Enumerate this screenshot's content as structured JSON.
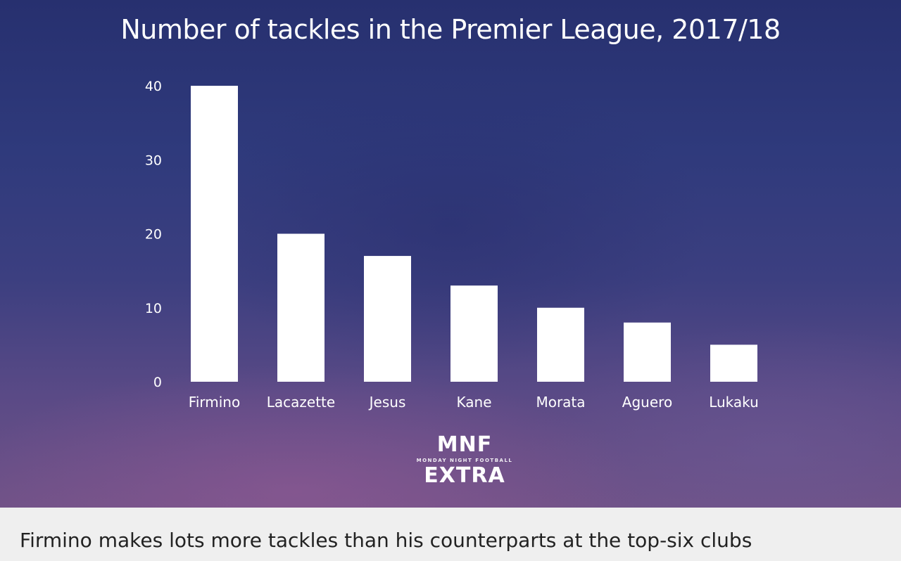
{
  "chart_data": {
    "type": "bar",
    "title": "Number of tackles in the Premier League, 2017/18",
    "categories": [
      "Firmino",
      "Lacazette",
      "Jesus",
      "Kane",
      "Morata",
      "Aguero",
      "Lukaku"
    ],
    "values": [
      40,
      20,
      17,
      13,
      10,
      8,
      5
    ],
    "yticks": [
      "0",
      "10",
      "20",
      "30",
      "40"
    ],
    "ylim": [
      0,
      40
    ],
    "xlabel": "",
    "ylabel": "",
    "grid": false,
    "bar_color": "#ffffff"
  },
  "logo": {
    "line1": "MNF",
    "line2": "MONDAY NIGHT FOOTBALL",
    "line3": "EXTRA"
  },
  "caption": "Firmino makes lots more tackles than his counterparts at the top-six clubs",
  "colors": {
    "background_top": "#27306f",
    "background_bottom": "#6f5287",
    "caption_bg": "#efefef",
    "caption_text": "#222222"
  }
}
